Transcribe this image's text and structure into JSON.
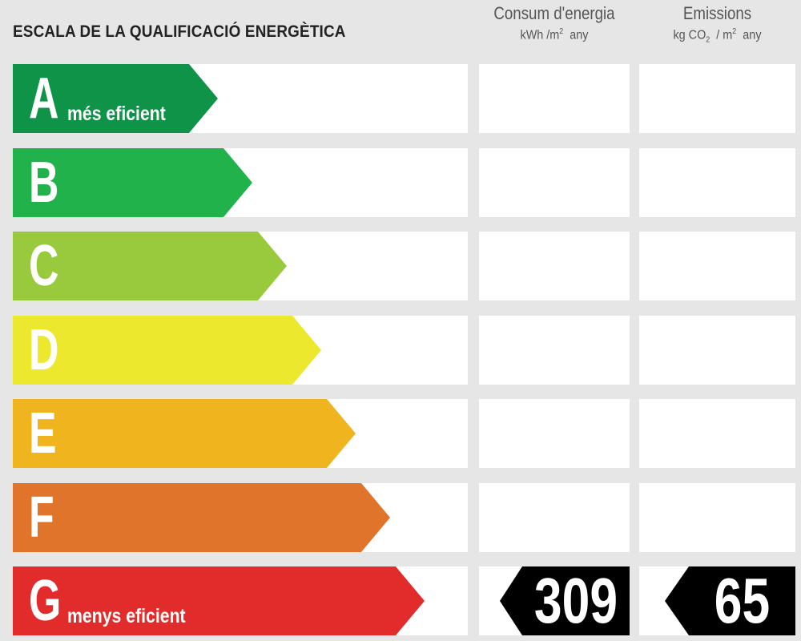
{
  "header": {
    "title": "ESCALA DE LA QUALIFICACIÓ ENERGÈTICA",
    "energy_title": "Consum d'energia",
    "energy_unit_pre": "kWh /m",
    "energy_unit_sup": "2",
    "energy_unit_post": "any",
    "emissions_title": "Emissions",
    "emissions_unit_pre": "kg CO",
    "emissions_unit_sub": "2",
    "emissions_unit_mid": "/ m",
    "emissions_unit_sup": "2",
    "emissions_unit_post": "any"
  },
  "chart_data": {
    "type": "table",
    "classes": [
      {
        "letter": "A",
        "sublabel": "més eficient",
        "color": "#0e9348"
      },
      {
        "letter": "B",
        "sublabel": "",
        "color": "#21b24b"
      },
      {
        "letter": "C",
        "sublabel": "",
        "color": "#99c93c"
      },
      {
        "letter": "D",
        "sublabel": "",
        "color": "#ebe82d"
      },
      {
        "letter": "E",
        "sublabel": "",
        "color": "#f0b41e"
      },
      {
        "letter": "F",
        "sublabel": "",
        "color": "#e0742a"
      },
      {
        "letter": "G",
        "sublabel": "menys eficient",
        "color": "#e12c2b"
      }
    ],
    "rating_class": "G",
    "energy_consumption": "309",
    "emissions": "65"
  }
}
